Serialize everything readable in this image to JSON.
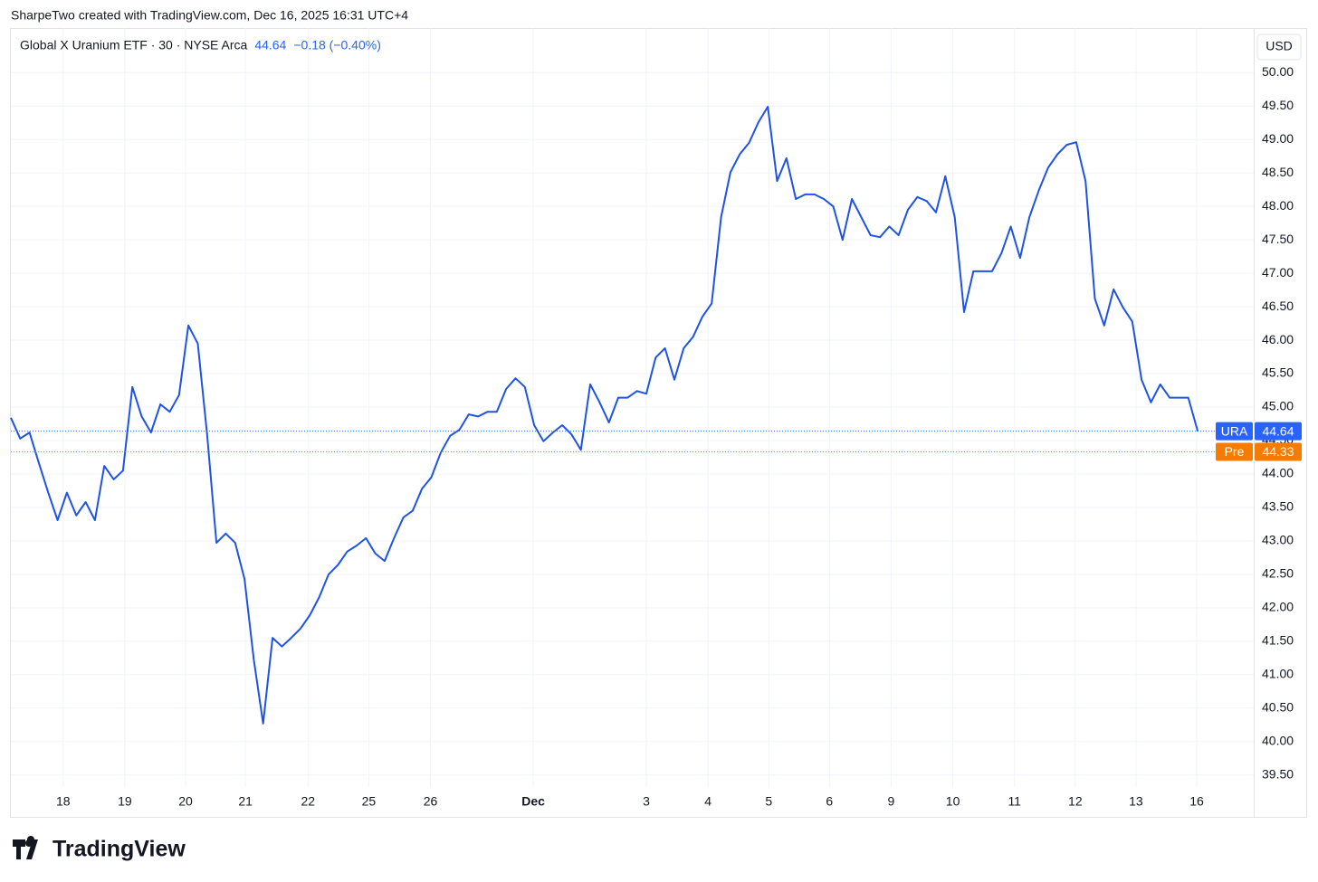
{
  "attribution": "SharpeTwo created with TradingView.com, Dec 16, 2025 16:31 UTC+4",
  "logo": "TradingView",
  "chart_data": {
    "type": "line",
    "title": "Global X Uranium ETF · 30 · NYSE Arca",
    "change": "−0.18 (−0.40%)",
    "currency": "USD",
    "series": [
      {
        "name": "URA",
        "color": "#1e53e5",
        "values": [
          44.84,
          44.53,
          44.62,
          44.16,
          43.72,
          43.31,
          43.72,
          43.38,
          43.58,
          43.31,
          44.12,
          43.92,
          44.05,
          45.3,
          44.86,
          44.62,
          45.04,
          44.93,
          45.18,
          46.22,
          45.95,
          44.59,
          42.97,
          43.11,
          42.97,
          42.43,
          41.22,
          40.27,
          41.55,
          41.42,
          41.55,
          41.69,
          41.89,
          42.16,
          42.5,
          42.64,
          42.84,
          42.93,
          43.04,
          42.81,
          42.7,
          43.04,
          43.35,
          43.45,
          43.78,
          43.95,
          44.32,
          44.57,
          44.66,
          44.89,
          44.86,
          44.93,
          44.93,
          45.27,
          45.43,
          45.3,
          44.73,
          44.49,
          44.62,
          44.73,
          44.59,
          44.36,
          45.34,
          45.07,
          44.77,
          45.14,
          45.14,
          45.24,
          45.2,
          45.74,
          45.88,
          45.41,
          45.88,
          46.05,
          46.35,
          46.55,
          47.84,
          48.51,
          48.78,
          48.95,
          49.26,
          49.49,
          48.38,
          48.72,
          48.11,
          48.18,
          48.18,
          48.11,
          48.0,
          47.5,
          48.11,
          47.84,
          47.57,
          47.54,
          47.7,
          47.57,
          47.95,
          48.14,
          48.08,
          47.91,
          48.45,
          47.84,
          46.42,
          47.03,
          47.03,
          47.03,
          47.3,
          47.7,
          47.23,
          47.84,
          48.24,
          48.58,
          48.78,
          48.92,
          48.96,
          48.38,
          46.62,
          46.22,
          46.76,
          46.49,
          46.28,
          45.41,
          45.07,
          45.34,
          45.14,
          45.14,
          45.14,
          44.64
        ]
      }
    ],
    "price_lines": [
      {
        "name": "URA",
        "value": 44.64,
        "color": "#2962ff"
      },
      {
        "name": "Pre",
        "value": 44.33,
        "color": "#f57c00"
      }
    ],
    "xlim": [
      0,
      133
    ],
    "xticks": [
      {
        "value": 5.6,
        "label": "18"
      },
      {
        "value": 12.2,
        "label": "19"
      },
      {
        "value": 18.7,
        "label": "20"
      },
      {
        "value": 25.1,
        "label": "21"
      },
      {
        "value": 31.8,
        "label": "22"
      },
      {
        "value": 38.3,
        "label": "25"
      },
      {
        "value": 44.9,
        "label": "26"
      },
      {
        "value": 55.9,
        "label": "Dec"
      },
      {
        "value": 68.0,
        "label": "3"
      },
      {
        "value": 74.6,
        "label": "4"
      },
      {
        "value": 81.1,
        "label": "5"
      },
      {
        "value": 87.6,
        "label": "6"
      },
      {
        "value": 94.2,
        "label": "9"
      },
      {
        "value": 100.8,
        "label": "10"
      },
      {
        "value": 107.4,
        "label": "11"
      },
      {
        "value": 113.9,
        "label": "12"
      },
      {
        "value": 120.4,
        "label": "13"
      },
      {
        "value": 126.9,
        "label": "16"
      }
    ],
    "ylim": [
      39.32,
      50.68
    ],
    "yticks": [
      {
        "value": 39.5,
        "label": "39.50"
      },
      {
        "value": 40,
        "label": "40.00"
      },
      {
        "value": 40.5,
        "label": "40.50"
      },
      {
        "value": 41,
        "label": "41.00"
      },
      {
        "value": 41.5,
        "label": "41.50"
      },
      {
        "value": 42,
        "label": "42.00"
      },
      {
        "value": 42.5,
        "label": "42.50"
      },
      {
        "value": 43,
        "label": "43.00"
      },
      {
        "value": 43.5,
        "label": "43.50"
      },
      {
        "value": 44,
        "label": "44.00"
      },
      {
        "value": 44.5,
        "label": "44.50"
      },
      {
        "value": 45,
        "label": "45.00"
      },
      {
        "value": 45.5,
        "label": "45.50"
      },
      {
        "value": 46,
        "label": "46.00"
      },
      {
        "value": 46.5,
        "label": "46.50"
      },
      {
        "value": 47,
        "label": "47.00"
      },
      {
        "value": 47.5,
        "label": "47.50"
      },
      {
        "value": 48,
        "label": "48.00"
      },
      {
        "value": 48.5,
        "label": "48.50"
      },
      {
        "value": 49,
        "label": "49.00"
      },
      {
        "value": 49.5,
        "label": "49.50"
      },
      {
        "value": 50,
        "label": "50.00"
      }
    ],
    "grid": true
  }
}
